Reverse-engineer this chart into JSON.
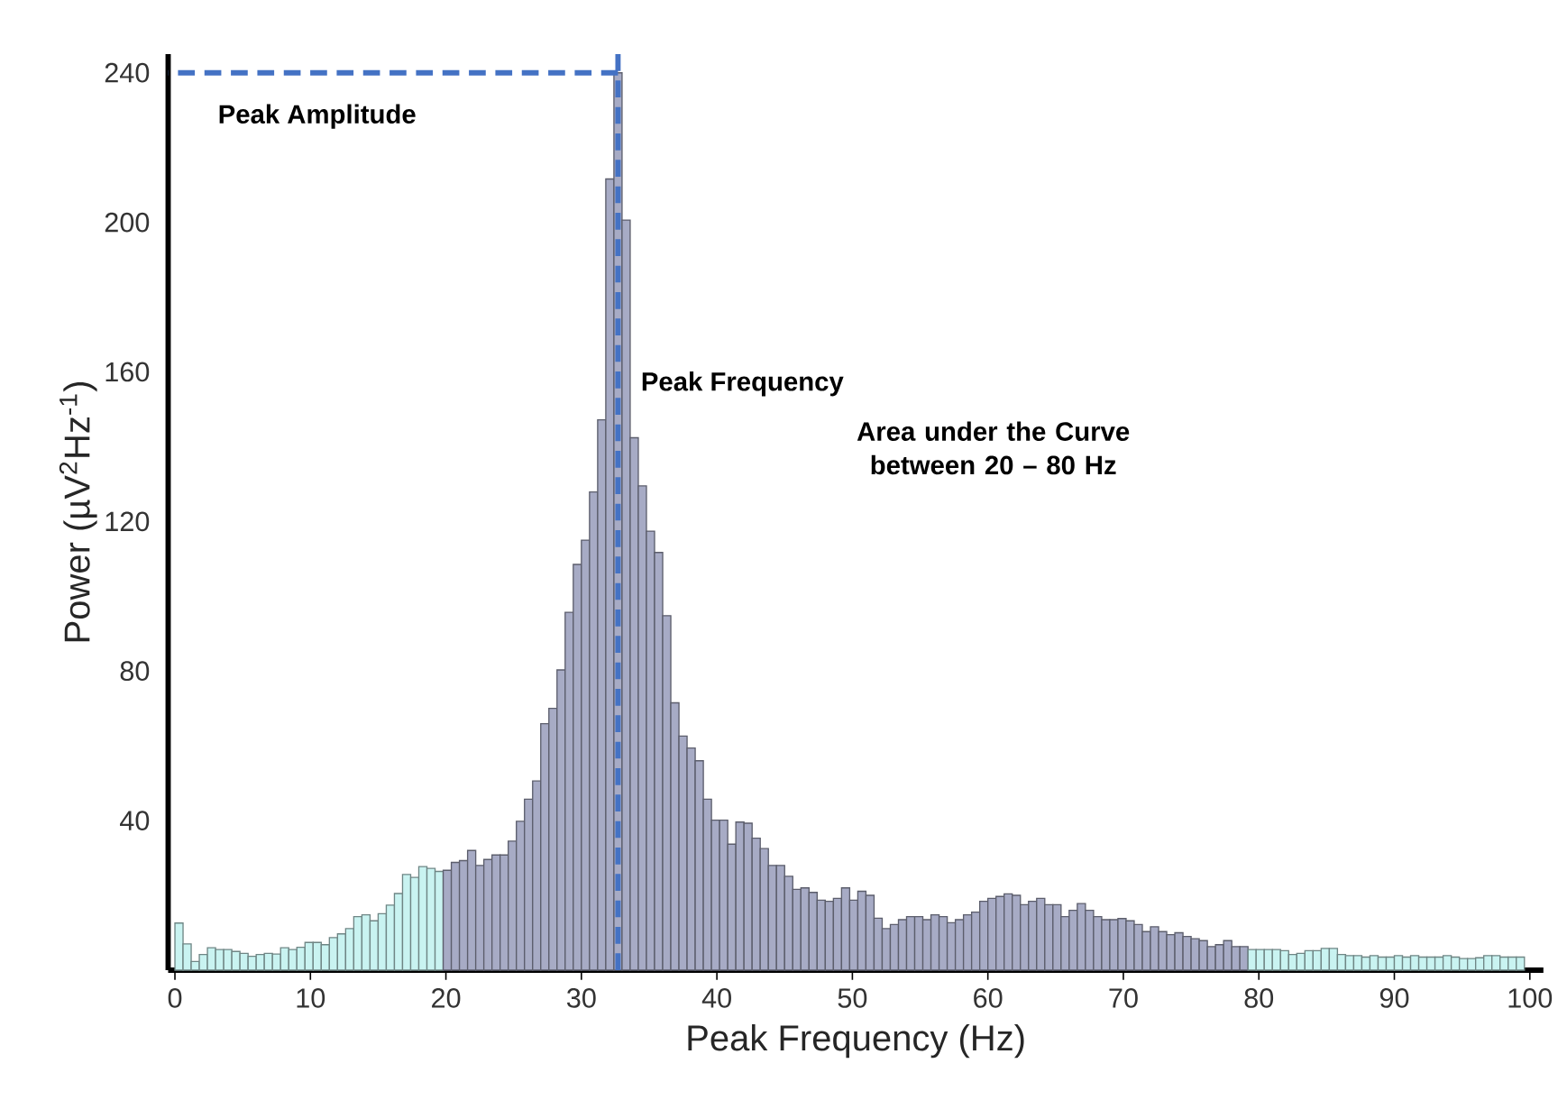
{
  "chart_data": {
    "type": "histogram",
    "xlabel": "Peak Frequency (Hz)",
    "ylabel": "Power (µV$^{2}$Hz$^{-1}$)",
    "bins": [
      0,
      0.6,
      1.2,
      1.8,
      2.4,
      3,
      3.6,
      4.2,
      4.8,
      5.4,
      6,
      6.6,
      7.2,
      7.8,
      8.4,
      9,
      9.6,
      10.2,
      10.8,
      11.4,
      12,
      12.6,
      13.2,
      13.8,
      14.4,
      15,
      15.6,
      16.2,
      16.8,
      17.4,
      18,
      18.6,
      19.2,
      19.8,
      20.4,
      21,
      21.6,
      22.2,
      22.8,
      23.4,
      24,
      24.6,
      25.2,
      25.8,
      26.4,
      27,
      27.6,
      28.2,
      28.8,
      29.4,
      30,
      30.6,
      31.2,
      31.8,
      32.4,
      33,
      33.6,
      34.2,
      34.8,
      35.4,
      36,
      36.6,
      37.2,
      37.8,
      38.4,
      39,
      39.6,
      40.2,
      40.8,
      41.4,
      42,
      42.6,
      43.2,
      43.8,
      44.4,
      45,
      45.6,
      46.2,
      46.8,
      47.4,
      48,
      48.6,
      49.2,
      49.8,
      50.4,
      51,
      51.6,
      52.2,
      52.8,
      53.4,
      54,
      54.6,
      55.2,
      55.8,
      56.4,
      57,
      57.6,
      58.2,
      58.8,
      59.4,
      60,
      60.6,
      61.2,
      61.8,
      62.4,
      63,
      63.6,
      64.2,
      64.8,
      65.4,
      66,
      66.6,
      67.2,
      67.8,
      68.4,
      69,
      69.6,
      70.2,
      70.8,
      71.4,
      72,
      72.6,
      73.2,
      73.8,
      74.4,
      75,
      75.6,
      76.2,
      76.8,
      77.4,
      78,
      78.6,
      79.2,
      79.8,
      80.4,
      81,
      81.6,
      82.2,
      82.8,
      83.4,
      84,
      84.6,
      85.2,
      85.8,
      86.4,
      87,
      87.6,
      88.2,
      88.8,
      89.4,
      90,
      90.6,
      91.2,
      91.8,
      92.4,
      93,
      93.6,
      94.2,
      94.8,
      95.4,
      96,
      96.6,
      97.2,
      97.8,
      98.4,
      99,
      99.6
    ],
    "values": [
      12.6,
      7,
      2.3,
      4.2,
      6,
      5.5,
      5.5,
      5,
      4.5,
      3.7,
      4.2,
      4.5,
      4.3,
      6,
      5.5,
      6.1,
      7.4,
      7.4,
      6.8,
      8.7,
      9.7,
      11.1,
      14.3,
      14.8,
      13.2,
      15.1,
      17.4,
      20.5,
      25.6,
      24.8,
      27.7,
      27.2,
      26.4,
      26.7,
      28.8,
      29.3,
      32,
      28,
      29.6,
      30.8,
      30.8,
      34.5,
      39.8,
      45.7,
      50.6,
      65.9,
      70,
      80.3,
      95.7,
      108.5,
      115,
      127.9,
      147.2,
      211.6,
      240,
      200.6,
      142.4,
      129.5,
      117.4,
      111.7,
      94.8,
      71.5,
      62.6,
      59.4,
      56,
      45.7,
      40.1,
      40.1,
      33.7,
      39.6,
      39.3,
      35.3,
      32.5,
      28,
      28,
      25.1,
      21.6,
      22,
      20.8,
      18.7,
      18.4,
      19.2,
      22,
      18.7,
      21.1,
      20,
      13.9,
      11.1,
      12.2,
      13.5,
      14.3,
      14.3,
      13.5,
      14.8,
      14.3,
      12.7,
      13.5,
      14.8,
      15.5,
      18.4,
      19.2,
      19.7,
      20.4,
      20,
      17.5,
      18.4,
      19.2,
      17.5,
      17.5,
      14.3,
      16,
      17.8,
      16,
      14.3,
      13.5,
      13.5,
      13.8,
      13.2,
      12.2,
      10.3,
      11.6,
      10.3,
      9.5,
      10,
      9,
      8.4,
      7.9,
      6.3,
      6.8,
      7.9,
      6.3,
      6.3,
      5.5,
      5.5,
      5.5,
      5.5,
      5.2,
      4.2,
      4.5,
      5.2,
      5.2,
      5.8,
      5.8,
      4.2,
      3.9,
      3.9,
      3.5,
      3.9,
      3.5,
      3.5,
      3.9,
      3.5,
      3.9,
      3.5,
      3.5,
      3.5,
      3.9,
      3.5,
      3.1,
      3.1,
      3.3,
      3.9,
      3.9,
      3.5,
      3.5,
      3.5
    ],
    "colors": [
      "#c9f3f1",
      "#c9f3f1",
      "#c9f3f1",
      "#c9f3f1",
      "#c9f3f1",
      "#c9f3f1",
      "#c9f3f1",
      "#c9f3f1",
      "#c9f3f1",
      "#c9f3f1",
      "#c9f3f1",
      "#c9f3f1",
      "#c9f3f1",
      "#c9f3f1",
      "#c9f3f1",
      "#c9f3f1",
      "#c9f3f1",
      "#c9f3f1",
      "#c9f3f1",
      "#c9f3f1",
      "#c9f3f1",
      "#c9f3f1",
      "#c9f3f1",
      "#c9f3f1",
      "#c9f3f1",
      "#c9f3f1",
      "#c9f3f1",
      "#c9f3f1",
      "#c9f3f1",
      "#c9f3f1",
      "#c9f3f1",
      "#c9f3f1",
      "#c9f3f1",
      "#a7abc5",
      "#a7abc5",
      "#a7abc5",
      "#a7abc5",
      "#a7abc5",
      "#a7abc5",
      "#a7abc5",
      "#a7abc5",
      "#a7abc5",
      "#a7abc5",
      "#a7abc5",
      "#a7abc5",
      "#a7abc5",
      "#a7abc5",
      "#a7abc5",
      "#a7abc5",
      "#a7abc5",
      "#a7abc5",
      "#a7abc5",
      "#a7abc5",
      "#a7abc5",
      "#a7abc5",
      "#a7abc5",
      "#a7abc5",
      "#a7abc5",
      "#a7abc5",
      "#a7abc5",
      "#a7abc5",
      "#a7abc5",
      "#a7abc5",
      "#a7abc5",
      "#a7abc5",
      "#a7abc5",
      "#a7abc5",
      "#a7abc5",
      "#a7abc5",
      "#a7abc5",
      "#a7abc5",
      "#a7abc5",
      "#a7abc5",
      "#a7abc5",
      "#a7abc5",
      "#a7abc5",
      "#a7abc5",
      "#a7abc5",
      "#a7abc5",
      "#a7abc5",
      "#a7abc5",
      "#a7abc5",
      "#a7abc5",
      "#a7abc5",
      "#a7abc5",
      "#a7abc5",
      "#a7abc5",
      "#a7abc5",
      "#a7abc5",
      "#a7abc5",
      "#a7abc5",
      "#a7abc5",
      "#a7abc5",
      "#a7abc5",
      "#a7abc5",
      "#a7abc5",
      "#a7abc5",
      "#a7abc5",
      "#a7abc5",
      "#a7abc5",
      "#a7abc5",
      "#a7abc5",
      "#a7abc5",
      "#a7abc5",
      "#a7abc5",
      "#a7abc5",
      "#a7abc5",
      "#a7abc5",
      "#a7abc5",
      "#a7abc5",
      "#a7abc5",
      "#a7abc5",
      "#a7abc5",
      "#a7abc5",
      "#a7abc5",
      "#a7abc5",
      "#a7abc5",
      "#a7abc5",
      "#a7abc5",
      "#a7abc5",
      "#a7abc5",
      "#a7abc5",
      "#a7abc5",
      "#a7abc5",
      "#a7abc5",
      "#a7abc5",
      "#a7abc5",
      "#a7abc5",
      "#a7abc5",
      "#a7abc5",
      "#a7abc5",
      "#a7abc5",
      "#c9f3f1",
      "#c9f3f1",
      "#c9f3f1",
      "#c9f3f1",
      "#c9f3f1",
      "#c9f3f1",
      "#c9f3f1",
      "#c9f3f1",
      "#c9f3f1",
      "#c9f3f1",
      "#c9f3f1",
      "#c9f3f1",
      "#c9f3f1",
      "#c9f3f1",
      "#c9f3f1",
      "#c9f3f1",
      "#c9f3f1",
      "#c9f3f1",
      "#c9f3f1",
      "#c9f3f1",
      "#c9f3f1",
      "#c9f3f1",
      "#c9f3f1",
      "#c9f3f1",
      "#c9f3f1",
      "#c9f3f1",
      "#c9f3f1",
      "#c9f3f1",
      "#c9f3f1",
      "#c9f3f1",
      "#c9f3f1",
      "#c9f3f1",
      "#c9f3f1",
      "#c9f3f1"
    ],
    "xlim": [
      -0.5,
      101
    ],
    "ylim": [
      0,
      245
    ],
    "xticks": [
      0,
      10,
      20,
      30,
      40,
      50,
      60,
      70,
      80,
      90,
      100
    ],
    "yticks": [
      40,
      80,
      120,
      160,
      200,
      240
    ],
    "ref_lines": [
      {
        "axis": "x",
        "value": 32.7,
        "label": "Peak Frequency",
        "color": "#4472c4",
        "line_style": "dashed"
      },
      {
        "axis": "y",
        "value": 240,
        "label": "Peak Amplitude",
        "color": "#4472c4",
        "line_style": "dashed"
      }
    ],
    "annotations": [
      "Area under the Curve between 20 – 80 Hz"
    ]
  }
}
